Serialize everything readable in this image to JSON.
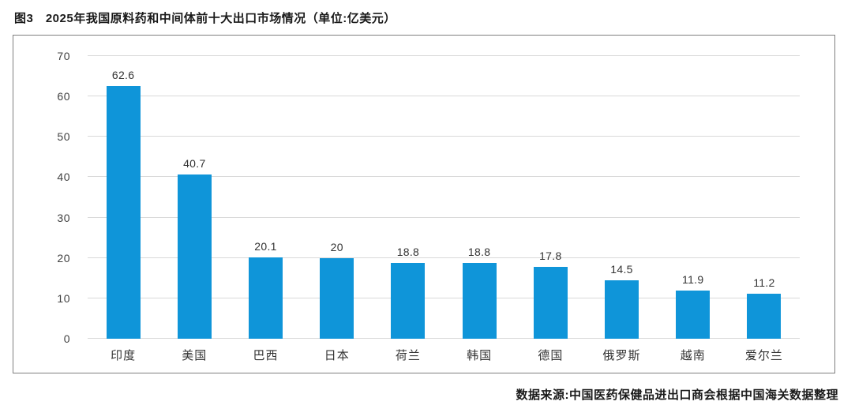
{
  "figure_title": "图3　2025年我国原料药和中间体前十大出口市场情况（单位:亿美元）",
  "source_note": "数据来源:中国医药保健品进出口商会根据中国海关数据整理",
  "colors": {
    "bar": "#0f95d9",
    "grid": "#d9d9d9",
    "frame": "#7f7f7f",
    "text": "#1a1a1a"
  },
  "chart_data": {
    "type": "bar",
    "title": "2025年我国原料药和中间体前十大出口市场情况",
    "unit": "亿美元",
    "categories": [
      "印度",
      "美国",
      "巴西",
      "日本",
      "荷兰",
      "韩国",
      "德国",
      "俄罗斯",
      "越南",
      "爱尔兰"
    ],
    "values": [
      62.6,
      40.7,
      20.1,
      20,
      18.8,
      18.8,
      17.8,
      14.5,
      11.9,
      11.2
    ],
    "value_labels": [
      "62.6",
      "40.7",
      "20.1",
      "20",
      "18.8",
      "18.8",
      "17.8",
      "14.5",
      "11.9",
      "11.2"
    ],
    "xlabel": "",
    "ylabel": "",
    "ylim": [
      0,
      70
    ],
    "yticks": [
      0,
      10,
      20,
      30,
      40,
      50,
      60,
      70
    ],
    "grid": true,
    "legend": false
  }
}
